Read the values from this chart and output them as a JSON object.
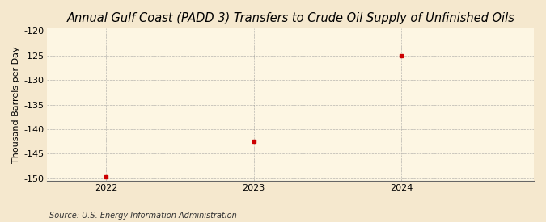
{
  "title": "Annual Gulf Coast (PADD 3) Transfers to Crude Oil Supply of Unfinished Oils",
  "ylabel": "Thousand Barrels per Day",
  "source": "Source: U.S. Energy Information Administration",
  "x": [
    2022,
    2023,
    2024
  ],
  "y": [
    -149.7,
    -142.4,
    -125.0
  ],
  "xlim": [
    2021.6,
    2024.9
  ],
  "ylim": [
    -150.5,
    -119.5
  ],
  "yticks": [
    -150,
    -145,
    -140,
    -135,
    -130,
    -125,
    -120
  ],
  "xticks": [
    2022,
    2023,
    2024
  ],
  "marker_color": "#cc0000",
  "marker": "s",
  "marker_size": 3.5,
  "bg_color": "#f5e8ce",
  "plot_bg_color": "#fdf6e3",
  "grid_color": "#999999",
  "title_fontsize": 10.5,
  "label_fontsize": 8,
  "tick_fontsize": 8,
  "source_fontsize": 7
}
